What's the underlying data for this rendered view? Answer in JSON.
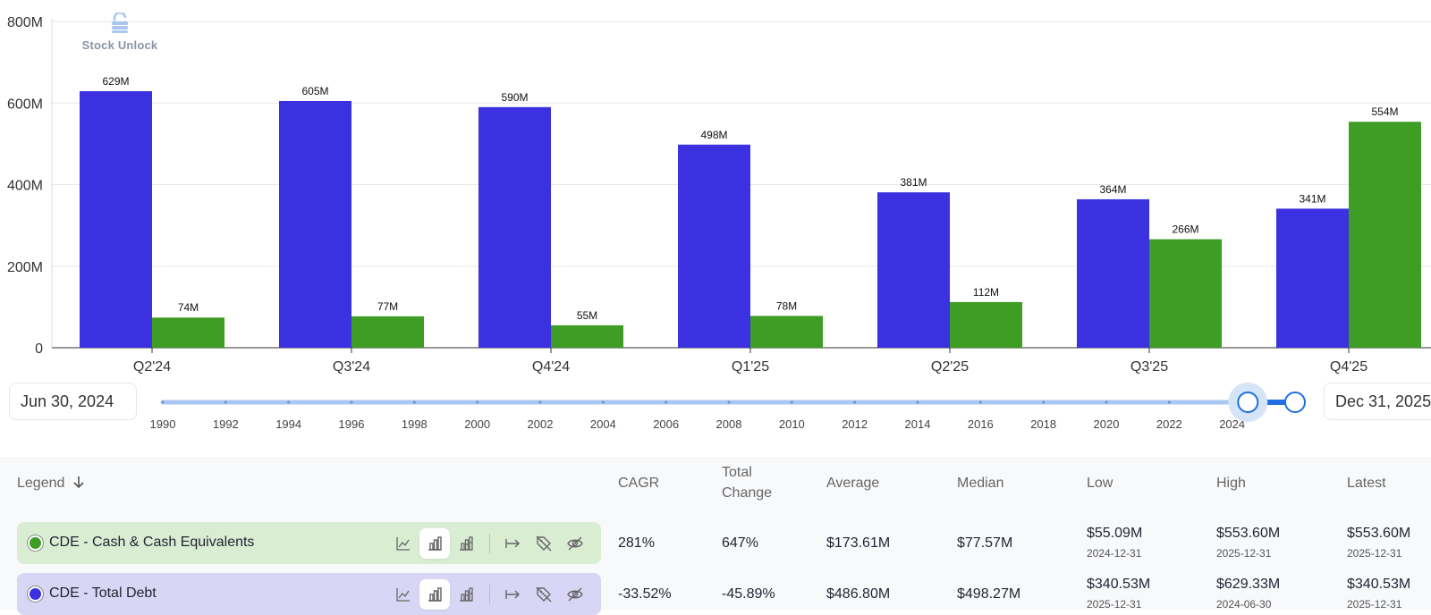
{
  "logo": {
    "text": "Stock Unlock"
  },
  "chart_data": {
    "type": "bar",
    "categories": [
      "Q2'24",
      "Q3'24",
      "Q4'24",
      "Q1'25",
      "Q2'25",
      "Q3'25",
      "Q4'25"
    ],
    "series": [
      {
        "name": "CDE - Total Debt",
        "color": "#3b31e0",
        "values": [
          629,
          605,
          590,
          498,
          381,
          364,
          341
        ],
        "labels": [
          "629M",
          "605M",
          "590M",
          "498M",
          "381M",
          "364M",
          "341M"
        ]
      },
      {
        "name": "CDE - Cash & Cash Equivalents",
        "color": "#3e9d24",
        "values": [
          74,
          77,
          55,
          78,
          112,
          266,
          554
        ],
        "labels": [
          "74M",
          "77M",
          "55M",
          "78M",
          "112M",
          "266M",
          "554M"
        ]
      }
    ],
    "ylim": [
      0,
      800
    ],
    "yticks": [
      0,
      200,
      400,
      600,
      800
    ],
    "ytick_labels": [
      "0",
      "200M",
      "400M",
      "600M",
      "800M"
    ],
    "grid": true
  },
  "range": {
    "start_label": "Jun 30, 2024",
    "end_label": "Dec 31, 2025",
    "years": [
      "1990",
      "1992",
      "1994",
      "1996",
      "1998",
      "2000",
      "2002",
      "2004",
      "2006",
      "2008",
      "2010",
      "2012",
      "2014",
      "2016",
      "2018",
      "2020",
      "2022",
      "2024"
    ],
    "axis_min_year": 1990,
    "axis_max_year": 2026,
    "selected_start": 2024.5,
    "selected_end": 2026.0
  },
  "table": {
    "headers": {
      "legend": "Legend",
      "cagr": "CAGR",
      "total_change_1": "Total",
      "total_change_2": "Change",
      "average": "Average",
      "median": "Median",
      "low": "Low",
      "high": "High",
      "latest": "Latest"
    },
    "rows": [
      {
        "label": "CDE - Cash & Cash Equivalents",
        "dot_color": "#3e9d24",
        "bg": "#d9edd3",
        "cagr": "281%",
        "total_change": "647%",
        "average": "$173.61M",
        "median": "$77.57M",
        "low": "$55.09M",
        "low_date": "2024-12-31",
        "high": "$553.60M",
        "high_date": "2025-12-31",
        "latest": "$553.60M",
        "latest_date": "2025-12-31"
      },
      {
        "label": "CDE - Total Debt",
        "dot_color": "#3b31e0",
        "bg": "#d8d6f4",
        "cagr": "-33.52%",
        "total_change": "-45.89%",
        "average": "$486.80M",
        "median": "$498.27M",
        "low": "$340.53M",
        "low_date": "2025-12-31",
        "high": "$629.33M",
        "high_date": "2024-06-30",
        "latest": "$340.53M",
        "latest_date": "2025-12-31"
      }
    ]
  }
}
